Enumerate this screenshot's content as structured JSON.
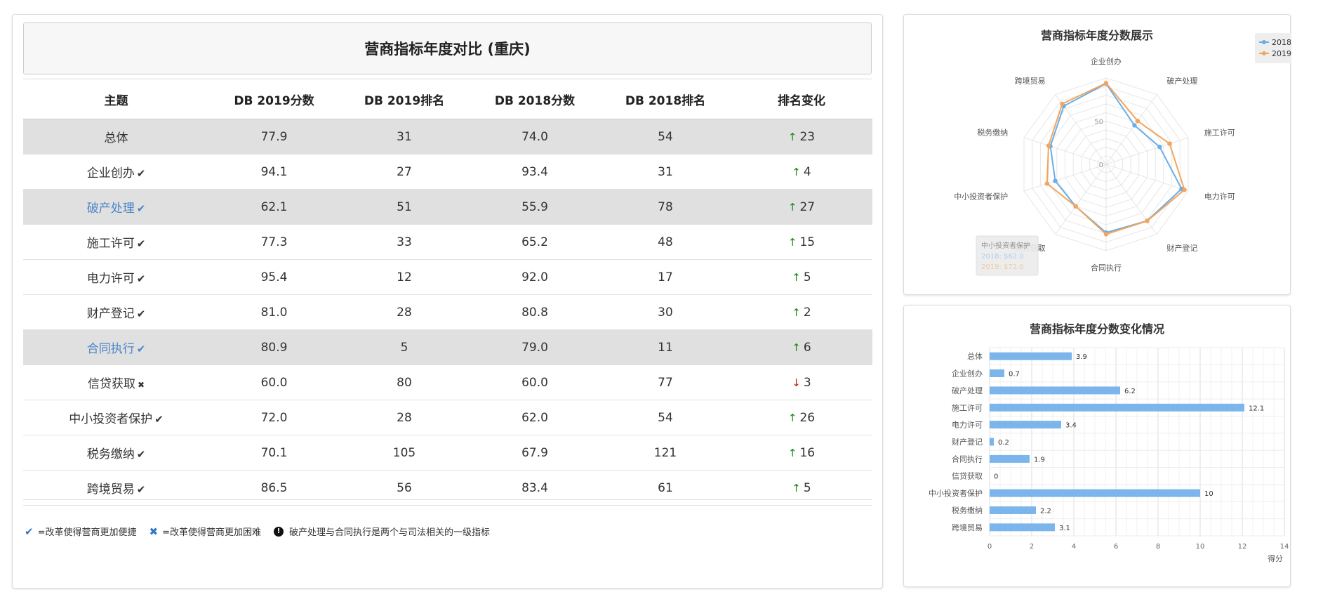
{
  "table": {
    "title": "营商指标年度对比 (重庆)",
    "headers": [
      "主题",
      "DB 2019分数",
      "DB 2019排名",
      "DB 2018分数",
      "DB 2018排名",
      "排名变化"
    ],
    "rows": [
      {
        "topic": "总体",
        "mark": "",
        "s2019": "77.9",
        "r2019": "31",
        "s2018": "74.0",
        "r2018": "54",
        "dir": "up",
        "change": "23",
        "highlight": true,
        "link": false
      },
      {
        "topic": "企业创办",
        "mark": "check",
        "s2019": "94.1",
        "r2019": "27",
        "s2018": "93.4",
        "r2018": "31",
        "dir": "up",
        "change": "4",
        "highlight": false,
        "link": false
      },
      {
        "topic": "破产处理",
        "mark": "check",
        "s2019": "62.1",
        "r2019": "51",
        "s2018": "55.9",
        "r2018": "78",
        "dir": "up",
        "change": "27",
        "highlight": true,
        "link": true
      },
      {
        "topic": "施工许可",
        "mark": "check",
        "s2019": "77.3",
        "r2019": "33",
        "s2018": "65.2",
        "r2018": "48",
        "dir": "up",
        "change": "15",
        "highlight": false,
        "link": false
      },
      {
        "topic": "电力许可",
        "mark": "check",
        "s2019": "95.4",
        "r2019": "12",
        "s2018": "92.0",
        "r2018": "17",
        "dir": "up",
        "change": "5",
        "highlight": false,
        "link": false
      },
      {
        "topic": "财产登记",
        "mark": "check",
        "s2019": "81.0",
        "r2019": "28",
        "s2018": "80.8",
        "r2018": "30",
        "dir": "up",
        "change": "2",
        "highlight": false,
        "link": false
      },
      {
        "topic": "合同执行",
        "mark": "check",
        "s2019": "80.9",
        "r2019": "5",
        "s2018": "79.0",
        "r2018": "11",
        "dir": "up",
        "change": "6",
        "highlight": true,
        "link": true
      },
      {
        "topic": "信贷获取",
        "mark": "x",
        "s2019": "60.0",
        "r2019": "80",
        "s2018": "60.0",
        "r2018": "77",
        "dir": "down",
        "change": "3",
        "highlight": false,
        "link": false
      },
      {
        "topic": "中小投资者保护",
        "mark": "check",
        "s2019": "72.0",
        "r2019": "28",
        "s2018": "62.0",
        "r2018": "54",
        "dir": "up",
        "change": "26",
        "highlight": false,
        "link": false
      },
      {
        "topic": "税务缴纳",
        "mark": "check",
        "s2019": "70.1",
        "r2019": "105",
        "s2018": "67.9",
        "r2018": "121",
        "dir": "up",
        "change": "16",
        "highlight": false,
        "link": false
      },
      {
        "topic": "跨境贸易",
        "mark": "check",
        "s2019": "86.5",
        "r2019": "56",
        "s2018": "83.4",
        "r2018": "61",
        "dir": "up",
        "change": "5",
        "highlight": false,
        "link": false
      }
    ]
  },
  "legend_notes": {
    "check_note": "=改革使得营商更加便捷",
    "x_note": "=改革使得营商更加困难",
    "info_note": "破产处理与合同执行是两个与司法相关的一级指标"
  },
  "colors": {
    "series_2018": "#6aaee6",
    "series_2019": "#f4a45c",
    "bar": "#7cb5ec",
    "link": "#4a86c8",
    "up": "#1a8a1a",
    "down": "#b42020"
  },
  "icons": {
    "check": "check-icon",
    "x": "x-icon",
    "up": "arrow-up-icon",
    "down": "arrow-down-icon",
    "info": "info-icon"
  },
  "chart_data": [
    {
      "type": "radar",
      "title": "营商指标年度分数展示",
      "categories": [
        "企业创办",
        "破产处理",
        "施工许可",
        "电力许可",
        "财产登记",
        "合同执行",
        "信贷获取",
        "中小投资者保护",
        "税务缴纳",
        "跨境贸易"
      ],
      "series": [
        {
          "name": "2018",
          "values": [
            93.4,
            55.9,
            65.2,
            92.0,
            80.8,
            79.0,
            60.0,
            62.0,
            67.9,
            83.4
          ]
        },
        {
          "name": "2019",
          "values": [
            94.1,
            62.1,
            77.3,
            95.4,
            81.0,
            80.9,
            60.0,
            72.0,
            70.1,
            86.5
          ]
        }
      ],
      "radial_ticks": [
        "0",
        "50"
      ],
      "range": [
        0,
        100
      ],
      "legend_position": "top-right",
      "tooltip": {
        "title": "中小投资者保护",
        "lines": [
          "2018: $62.0",
          "2019: $72.0"
        ]
      }
    },
    {
      "type": "bar",
      "orientation": "horizontal",
      "title": "营商指标年度分数变化情况",
      "categories": [
        "总体",
        "企业创办",
        "破产处理",
        "施工许可",
        "电力许可",
        "财产登记",
        "合同执行",
        "信贷获取",
        "中小投资者保护",
        "税务缴纳",
        "跨境贸易"
      ],
      "values": [
        3.9,
        0.7,
        6.2,
        12.1,
        3.4,
        0.2,
        1.9,
        0,
        10,
        2.2,
        3.1
      ],
      "value_labels": [
        "3.9",
        "0.7",
        "6.2",
        "12.1",
        "3.4",
        "0.2",
        "1.9",
        "0",
        "10",
        "2.2",
        "3.1"
      ],
      "x_ticks": [
        "0",
        "2",
        "4",
        "6",
        "8",
        "10",
        "12",
        "14"
      ],
      "xlim": [
        0,
        14
      ],
      "xlabel": "得分",
      "grid": true
    }
  ]
}
